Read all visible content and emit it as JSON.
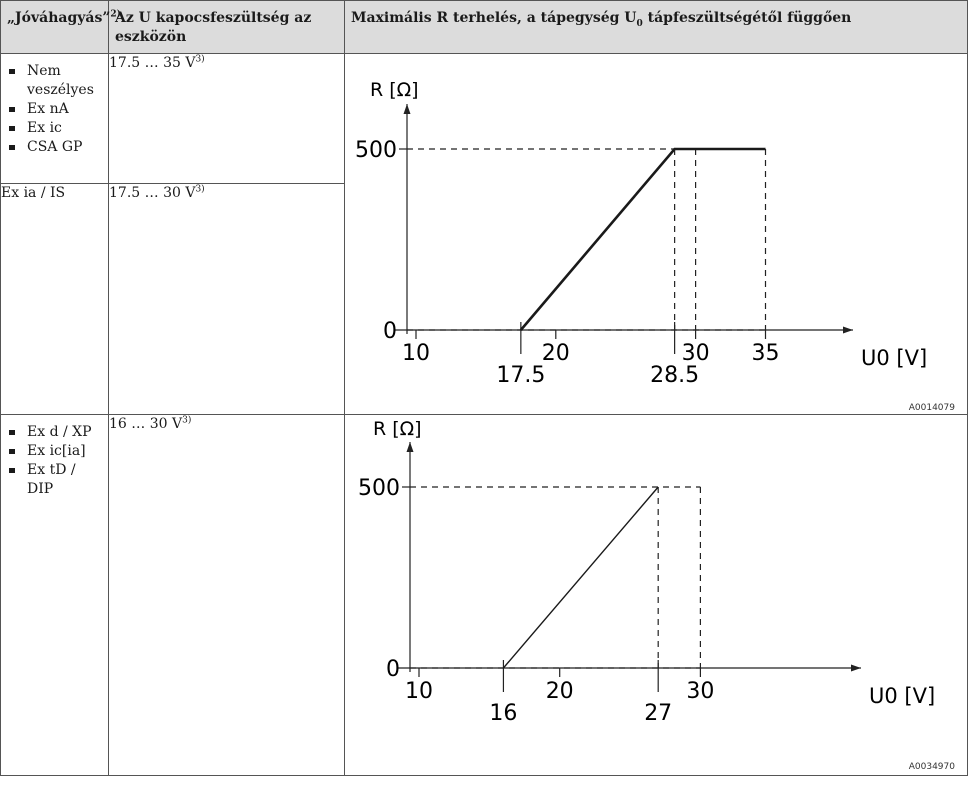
{
  "table": {
    "headers": {
      "col1": "„Jóváhagyás”",
      "col1_sup": "2)",
      "col2": "Az U kapocsfeszültség az eszközön",
      "col3_pre": "Maximális R terhelés, a tápegység U",
      "col3_sub": "0",
      "col3_post": " tápfeszültségétől függően"
    },
    "rows": [
      {
        "approvals": [
          "Nem veszélyes",
          "Ex nA",
          "Ex ic",
          "CSA GP"
        ],
        "voltage": "17.5 … 35 V",
        "voltage_sup": "3)"
      },
      {
        "approvals_text": "Ex ia / IS",
        "voltage": "17.5 … 30 V",
        "voltage_sup": "3)"
      },
      {
        "approvals": [
          "Ex d / XP",
          "Ex ic[ia]",
          "Ex tD / DIP"
        ],
        "voltage": "16 … 30 V",
        "voltage_sup": "3)"
      }
    ]
  },
  "chart_data": [
    {
      "type": "line",
      "ylabel": "R [Ω]",
      "xlabel": "U0 [V]",
      "x_ticks": [
        10,
        20,
        30,
        35
      ],
      "y_ticks": [
        0,
        500
      ],
      "x_marks": [
        17.5,
        28.5
      ],
      "series": [
        {
          "x": [
            17.5,
            28.5,
            35
          ],
          "y": [
            0,
            500,
            500
          ]
        }
      ],
      "dashed_refs_x": [
        28.5,
        30,
        35
      ],
      "code": "A0014079",
      "labels": {
        "y_axis": "R [Ω]",
        "x_axis": "U0 [V]",
        "y0": "0",
        "y500": "500",
        "x10": "10",
        "x20": "20",
        "x30": "30",
        "x35": "35",
        "m17": "17.5",
        "m28": "28.5"
      }
    },
    {
      "type": "line",
      "ylabel": "R [Ω]",
      "xlabel": "U0 [V]",
      "x_ticks": [
        10,
        20,
        30
      ],
      "y_ticks": [
        0,
        500
      ],
      "x_marks": [
        16,
        27
      ],
      "series": [
        {
          "x": [
            16,
            27
          ],
          "y": [
            0,
            500
          ]
        }
      ],
      "dashed_refs_x": [
        27,
        30
      ],
      "code": "A0034970",
      "labels": {
        "y_axis": "R [Ω]",
        "x_axis": "U0 [V]",
        "y0": "0",
        "y500": "500",
        "x10": "10",
        "x20": "20",
        "x30": "30",
        "m16": "16",
        "m27": "27"
      }
    }
  ]
}
